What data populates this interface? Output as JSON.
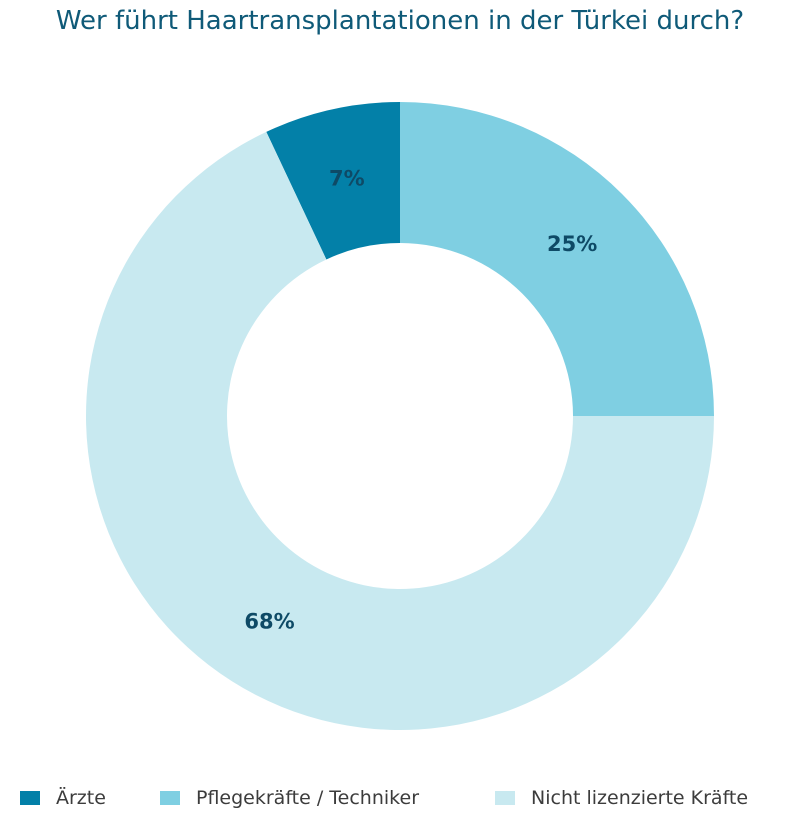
{
  "chart_data": {
    "type": "pie",
    "title": "Wer führt Haartransplantationen in der Türkei durch?",
    "categories": [
      "Ärzte",
      "Pflegekräfte / Techniker",
      "Nicht lizenzierte Kräfte"
    ],
    "values": [
      7,
      25,
      68
    ],
    "value_labels": [
      "7%",
      "25%",
      "68%"
    ],
    "colors": [
      "#0380a8",
      "#7fcfe2",
      "#c8e9f0"
    ],
    "label_colors": [
      "#0e4a66",
      "#0e4a66",
      "#0e4a66"
    ],
    "donut": true,
    "start_angle": "top, clockwise, first slice ends at 12 o'clock",
    "legend_position": "bottom"
  },
  "legend": {
    "items": [
      {
        "label": "Ärzte",
        "color": "#0380a8"
      },
      {
        "label": "Pflegekräfte / Techniker",
        "color": "#7fcfe2"
      },
      {
        "label": "Nicht lizenzierte Kräfte",
        "color": "#c8e9f0"
      }
    ]
  }
}
